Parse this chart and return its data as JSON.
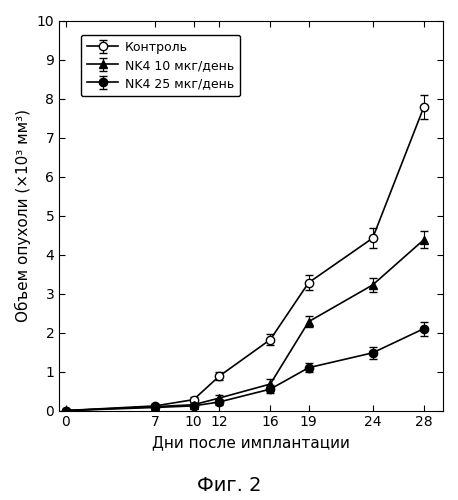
{
  "x_days": [
    0,
    7,
    10,
    12,
    16,
    19,
    24,
    28
  ],
  "control_y": [
    0.0,
    0.12,
    0.28,
    0.88,
    1.82,
    3.28,
    4.42,
    7.78
  ],
  "control_yerr": [
    0.02,
    0.05,
    0.07,
    0.1,
    0.15,
    0.2,
    0.25,
    0.3
  ],
  "nk4_10_y": [
    0.0,
    0.1,
    0.15,
    0.32,
    0.68,
    2.28,
    3.22,
    4.38
  ],
  "nk4_10_yerr": [
    0.02,
    0.04,
    0.06,
    0.08,
    0.12,
    0.15,
    0.18,
    0.22
  ],
  "nk4_25_y": [
    0.0,
    0.08,
    0.12,
    0.22,
    0.55,
    1.1,
    1.48,
    2.1
  ],
  "nk4_25_yerr": [
    0.02,
    0.03,
    0.05,
    0.07,
    0.1,
    0.12,
    0.15,
    0.18
  ],
  "xlabel": "Дни после имплантации",
  "ylabel": "Объем опухоли (х1о³ мм³)",
  "ylabel_display": "Объем опухоли (×10³ мм³)",
  "legend_control": "Контроль",
  "legend_nk4_10": "NK4 10 мкг/день",
  "legend_nk4_25": "NK4 25 мкг/день",
  "figure_label": "Фиг. 2",
  "ylim": [
    0,
    10
  ],
  "xlim": [
    -0.5,
    29.5
  ],
  "yticks": [
    0,
    1,
    2,
    3,
    4,
    5,
    6,
    7,
    8,
    9,
    10
  ],
  "xticks": [
    0,
    7,
    10,
    12,
    16,
    19,
    24,
    28
  ],
  "background_color": "#ffffff",
  "marker_size": 6,
  "line_width": 1.2,
  "cap_size": 3,
  "tick_fontsize": 10,
  "label_fontsize": 11,
  "legend_fontsize": 9,
  "figure_label_fontsize": 14
}
